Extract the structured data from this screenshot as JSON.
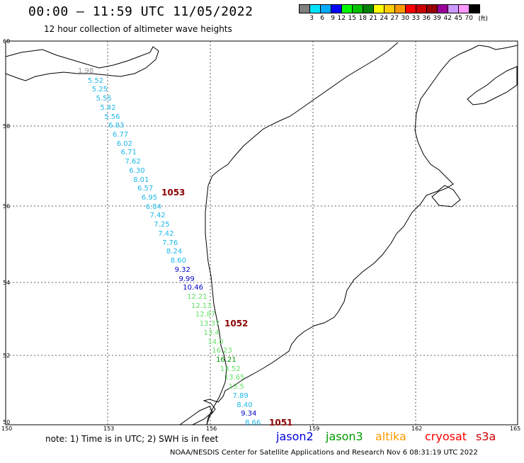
{
  "title": "00:00 – 11:59 UTC 11/05/2022",
  "subtitle": "12 hour collection of altimeter wave heights",
  "scale": {
    "colors": [
      "#808080",
      "#00e5ff",
      "#00aaff",
      "#0000ff",
      "#00ff00",
      "#00c000",
      "#008000",
      "#ffff00",
      "#ffcc00",
      "#ff9900",
      "#ff0000",
      "#cc0000",
      "#990000",
      "#990099",
      "#cc99ff",
      "#ff99ff",
      "#000000"
    ],
    "labels": [
      "3",
      "6",
      "9",
      "12",
      "15",
      "18",
      "21",
      "24",
      "27",
      "30",
      "33",
      "36",
      "39",
      "42",
      "45",
      "70"
    ],
    "unit": "(ft)"
  },
  "axes": {
    "lat_labels": [
      "60",
      "58",
      "56",
      "54",
      "52",
      "50"
    ],
    "lon_labels": [
      "150",
      "153",
      "156",
      "159",
      "162",
      "165"
    ]
  },
  "pressure_labels": [
    "1053",
    "1052",
    "1051"
  ],
  "track": [
    {
      "v": "1.98",
      "color": "#999999"
    },
    {
      "v": "5.52",
      "color": "#1fb8e8"
    },
    {
      "v": "5.25",
      "color": "#1fb8e8"
    },
    {
      "v": "5.55",
      "color": "#1fb8e8"
    },
    {
      "v": "5.42",
      "color": "#1fb8e8"
    },
    {
      "v": "5.56",
      "color": "#1fb8e8"
    },
    {
      "v": "6.83",
      "color": "#1fb8e8"
    },
    {
      "v": "6.77",
      "color": "#1fb8e8"
    },
    {
      "v": "6.02",
      "color": "#1fb8e8"
    },
    {
      "v": "6.71",
      "color": "#1fb8e8"
    },
    {
      "v": "7.62",
      "color": "#1fb8e8"
    },
    {
      "v": "6.30",
      "color": "#1fb8e8"
    },
    {
      "v": "8.01",
      "color": "#1fb8e8"
    },
    {
      "v": "6.57",
      "color": "#1fb8e8"
    },
    {
      "v": "6.95",
      "color": "#1fb8e8"
    },
    {
      "v": "6.84",
      "color": "#1fb8e8"
    },
    {
      "v": "7.42",
      "color": "#1fb8e8"
    },
    {
      "v": "7.25",
      "color": "#1fb8e8"
    },
    {
      "v": "7.42",
      "color": "#1fb8e8"
    },
    {
      "v": "7.76",
      "color": "#1fb8e8"
    },
    {
      "v": "8.24",
      "color": "#1fb8e8"
    },
    {
      "v": "8.60",
      "color": "#1fb8e8"
    },
    {
      "v": "9.32",
      "color": "#0000cc"
    },
    {
      "v": "9.99",
      "color": "#0000cc"
    },
    {
      "v": "10.46",
      "color": "#0000cc"
    },
    {
      "v": "12.21",
      "color": "#66e066"
    },
    {
      "v": "12.13",
      "color": "#66e066"
    },
    {
      "v": "12.87",
      "color": "#66e066"
    },
    {
      "v": "13.37",
      "color": "#66e066"
    },
    {
      "v": "13.4",
      "color": "#66e066"
    },
    {
      "v": "14.0",
      "color": "#66e066"
    },
    {
      "v": "16.23",
      "color": "#66e066"
    },
    {
      "v": "16.21",
      "color": "#009900"
    },
    {
      "v": "13.52",
      "color": "#66e066"
    },
    {
      "v": "13.65",
      "color": "#66e066"
    },
    {
      "v": "13.5",
      "color": "#66e066"
    },
    {
      "v": "7.89",
      "color": "#1fb8e8"
    },
    {
      "v": "8.40",
      "color": "#1fb8e8"
    },
    {
      "v": "9.34",
      "color": "#0000cc"
    },
    {
      "v": "8.66",
      "color": "#1fb8e8"
    }
  ],
  "note": "note:  1) Time is in UTC;  2) SWH is in feet",
  "satellites": [
    {
      "name": "jason2",
      "color": "#0000dd"
    },
    {
      "name": "jason3",
      "color": "#009900"
    },
    {
      "name": "altika",
      "color": "#ff9900"
    },
    {
      "name": "cryosat",
      "color": "#ff0000"
    },
    {
      "name": "s3a",
      "color": "#cc0000"
    }
  ],
  "footer": "NOAA/NESDIS Center for Satellite Applications and Research    Nov  6 08:31:19 UTC 2022"
}
